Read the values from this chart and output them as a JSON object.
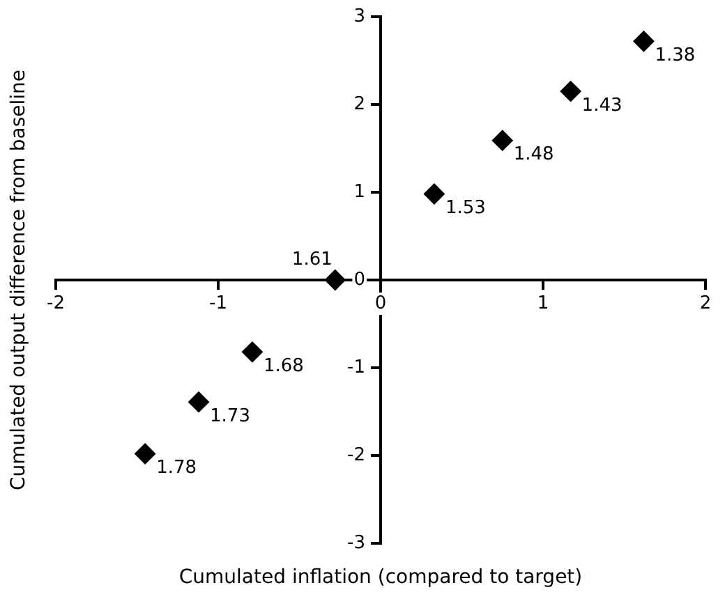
{
  "chart_data": {
    "type": "scatter",
    "xlabel": "Cumulated inflation (compared to target)",
    "ylabel": "Cumulated output difference from baseline",
    "x": [
      1.62,
      1.17,
      0.75,
      0.33,
      -0.28,
      -0.79,
      -1.12,
      -1.45
    ],
    "values": [
      2.72,
      2.15,
      1.59,
      0.98,
      0,
      -0.82,
      -1.39,
      -1.98
    ],
    "color": "#000000",
    "marker": "diamond",
    "grid": false,
    "legend": false,
    "xlim": [
      -2,
      2
    ],
    "xticks": [
      -2,
      -1,
      0,
      1,
      2
    ],
    "ylim": [
      -3,
      3
    ],
    "yticks": [
      -3,
      -2,
      -1,
      0,
      1,
      2,
      3
    ],
    "annotations": [
      {
        "text": "1.38",
        "x": 1.62,
        "y": 2.72
      },
      {
        "text": "1.43",
        "x": 1.17,
        "y": 2.15
      },
      {
        "text": "1.48",
        "x": 0.75,
        "y": 1.59
      },
      {
        "text": "1.53",
        "x": 0.33,
        "y": 0.98
      },
      {
        "text": "1.61",
        "x": -0.28,
        "y": 0
      },
      {
        "text": "1.68",
        "x": -0.79,
        "y": -0.82
      },
      {
        "text": "1.73",
        "x": -1.12,
        "y": -1.39
      },
      {
        "text": "1.78",
        "x": -1.45,
        "y": -1.98
      }
    ]
  }
}
